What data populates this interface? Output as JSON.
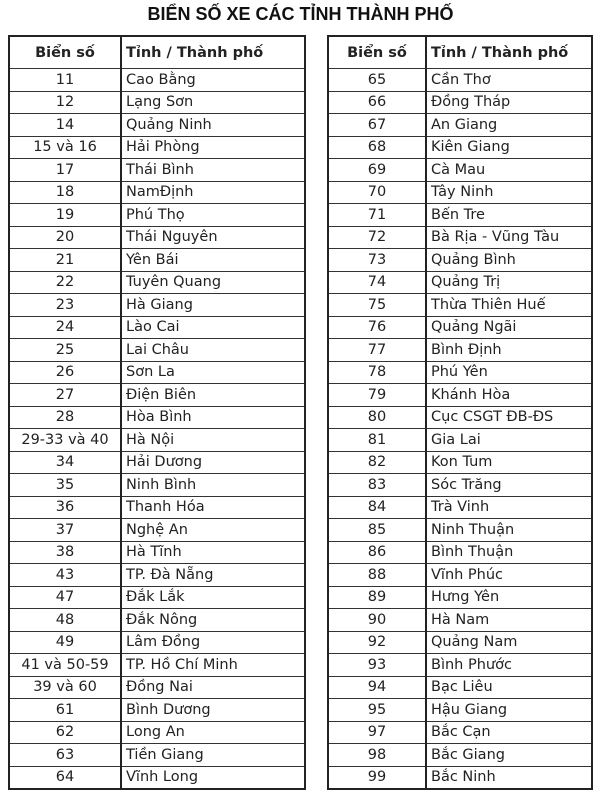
{
  "title": "BIỂN SỐ XE CÁC TỈNH THÀNH PHỐ",
  "headers": {
    "plate": "Biển số",
    "province": "Tỉnh / Thành phố"
  },
  "left_table": [
    [
      "11",
      "Cao Bằng"
    ],
    [
      "12",
      "Lạng Sơn"
    ],
    [
      "14",
      "Quảng Ninh"
    ],
    [
      "15 và 16",
      "Hải Phòng"
    ],
    [
      "17",
      "Thái Bình"
    ],
    [
      "18",
      "NamĐịnh"
    ],
    [
      "19",
      "Phú Thọ"
    ],
    [
      "20",
      "Thái Nguyên"
    ],
    [
      "21",
      "Yên Bái"
    ],
    [
      "22",
      "Tuyên Quang"
    ],
    [
      "23",
      "Hà Giang"
    ],
    [
      "24",
      "Lào Cai"
    ],
    [
      "25",
      "Lai Châu"
    ],
    [
      "26",
      "Sơn La"
    ],
    [
      "27",
      "Điện Biên"
    ],
    [
      "28",
      "Hòa Bình"
    ],
    [
      "29-33 và 40",
      "Hà Nội"
    ],
    [
      "34",
      "Hải Dương"
    ],
    [
      "35",
      "Ninh Bình"
    ],
    [
      "36",
      "Thanh Hóa"
    ],
    [
      "37",
      "Nghệ An"
    ],
    [
      "38",
      "Hà Tĩnh"
    ],
    [
      "43",
      "TP. Đà Nẵng"
    ],
    [
      "47",
      "Đắk Lắk"
    ],
    [
      "48",
      "Đắk Nông"
    ],
    [
      "49",
      "Lâm Đồng"
    ],
    [
      "41 và 50-59",
      "TP. Hồ Chí Minh"
    ],
    [
      "39 và 60",
      "Đồng Nai"
    ],
    [
      "61",
      "Bình Dương"
    ],
    [
      "62",
      "Long An"
    ],
    [
      "63",
      "Tiền Giang"
    ],
    [
      "64",
      "Vĩnh Long"
    ]
  ],
  "right_table": [
    [
      "65",
      "Cần Thơ"
    ],
    [
      "66",
      "Đồng Tháp"
    ],
    [
      "67",
      "An Giang"
    ],
    [
      "68",
      "Kiên Giang"
    ],
    [
      "69",
      "Cà Mau"
    ],
    [
      "70",
      "Tây Ninh"
    ],
    [
      "71",
      "Bến Tre"
    ],
    [
      "72",
      "Bà Rịa - Vũng Tàu"
    ],
    [
      "73",
      "Quảng Bình"
    ],
    [
      "74",
      "Quảng Trị"
    ],
    [
      "75",
      "Thừa Thiên Huế"
    ],
    [
      "76",
      "Quảng Ngãi"
    ],
    [
      "77",
      "Bình Định"
    ],
    [
      "78",
      "Phú Yên"
    ],
    [
      "79",
      "Khánh Hòa"
    ],
    [
      "80",
      "Cục CSGT ĐB-ĐS"
    ],
    [
      "81",
      "Gia Lai"
    ],
    [
      "82",
      "Kon Tum"
    ],
    [
      "83",
      "Sóc Trăng"
    ],
    [
      "84",
      "Trà Vinh"
    ],
    [
      "85",
      "Ninh Thuận"
    ],
    [
      "86",
      "Bình Thuận"
    ],
    [
      "88",
      "Vĩnh Phúc"
    ],
    [
      "89",
      "Hưng Yên"
    ],
    [
      "90",
      "Hà Nam"
    ],
    [
      "92",
      "Quảng Nam"
    ],
    [
      "93",
      "Bình Phước"
    ],
    [
      "94",
      "Bạc Liêu"
    ],
    [
      "95",
      "Hậu Giang"
    ],
    [
      "97",
      "Bắc Cạn"
    ],
    [
      "98",
      "Bắc Giang"
    ],
    [
      "99",
      "Bắc Ninh"
    ]
  ]
}
